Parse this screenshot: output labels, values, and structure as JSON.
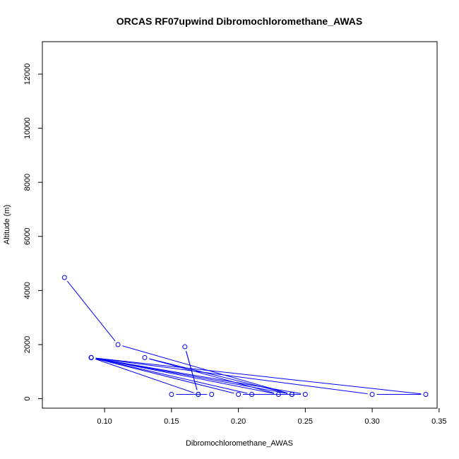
{
  "chart_data": {
    "type": "line",
    "title": "ORCAS RF07upwind Dibromochloromethane_AWAS",
    "xlabel": "Dibromochloromethane_AWAS",
    "ylabel": "Altitude (m)",
    "xlim": [
      0.0535,
      0.3485
    ],
    "ylim": [
      -350,
      13200
    ],
    "x_ticks": [
      0.1,
      0.15,
      0.2,
      0.25,
      0.3,
      0.35
    ],
    "x_tick_labels": [
      "0.10",
      "0.15",
      "0.20",
      "0.25",
      "0.30",
      "0.35"
    ],
    "y_ticks": [
      0,
      2000,
      4000,
      6000,
      8000,
      10000,
      12000
    ],
    "y_tick_labels": [
      "0",
      "2000",
      "4000",
      "6000",
      "8000",
      "10000",
      "12000"
    ],
    "grid": false,
    "series": [
      {
        "color": "#0000ff",
        "points": [
          {
            "x": 0.07,
            "y": 4480
          },
          {
            "x": 0.11,
            "y": 2000
          },
          {
            "x": 0.24,
            "y": 160
          },
          {
            "x": 0.09,
            "y": 1520
          },
          {
            "x": 0.34,
            "y": 160
          },
          {
            "x": 0.3,
            "y": 160
          },
          {
            "x": 0.09,
            "y": 1520
          },
          {
            "x": 0.25,
            "y": 160
          },
          {
            "x": 0.21,
            "y": 160
          },
          {
            "x": 0.09,
            "y": 1520
          },
          {
            "x": 0.23,
            "y": 160
          },
          {
            "x": 0.13,
            "y": 1520
          },
          {
            "x": 0.24,
            "y": 160
          },
          {
            "x": 0.2,
            "y": 160
          },
          {
            "x": 0.09,
            "y": 1520
          },
          {
            "x": 0.17,
            "y": 160
          },
          {
            "x": 0.16,
            "y": 1920
          },
          {
            "x": 0.17,
            "y": 160
          },
          {
            "x": 0.15,
            "y": 160
          },
          {
            "x": 0.18,
            "y": 160
          }
        ]
      }
    ]
  }
}
